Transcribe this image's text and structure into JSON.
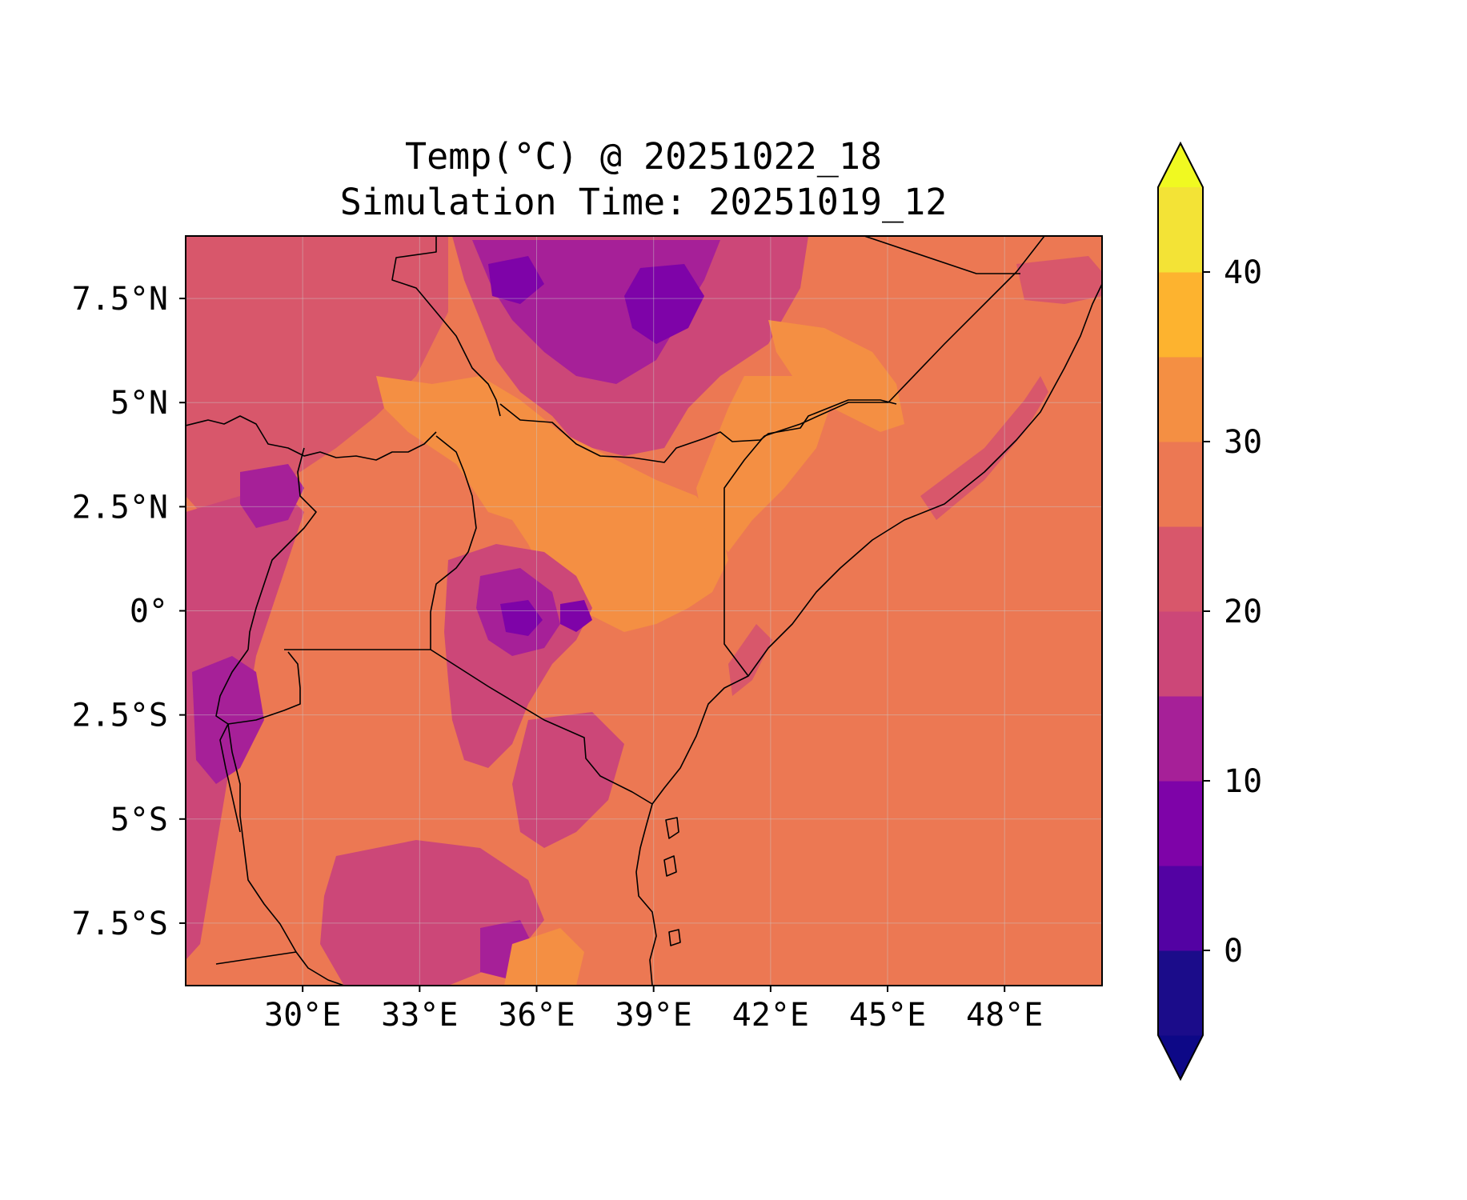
{
  "title": {
    "line1": "Temp(°C) @ 20251022_18",
    "line2": "Simulation Time: 20251019_12"
  },
  "map": {
    "lon_range": [
      27.0,
      50.5
    ],
    "lat_range": [
      -9.0,
      9.0
    ],
    "x_ticks": [
      {
        "value": 30,
        "label": "30°E"
      },
      {
        "value": 33,
        "label": "33°E"
      },
      {
        "value": 36,
        "label": "36°E"
      },
      {
        "value": 39,
        "label": "39°E"
      },
      {
        "value": 42,
        "label": "42°E"
      },
      {
        "value": 45,
        "label": "45°E"
      },
      {
        "value": 48,
        "label": "48°E"
      }
    ],
    "y_ticks": [
      {
        "value": 7.5,
        "label": "7.5°N"
      },
      {
        "value": 5,
        "label": "5°N"
      },
      {
        "value": 2.5,
        "label": "2.5°N"
      },
      {
        "value": 0,
        "label": "0°"
      },
      {
        "value": -2.5,
        "label": "2.5°S"
      },
      {
        "value": -5,
        "label": "5°S"
      },
      {
        "value": -7.5,
        "label": "7.5°S"
      }
    ],
    "gridlines": true
  },
  "colorbar": {
    "levels": [
      -5,
      0,
      5,
      10,
      15,
      20,
      25,
      30,
      35,
      40,
      45
    ],
    "colors": [
      "#1b0c8a",
      "#5302a3",
      "#7e03a8",
      "#a62098",
      "#cc4778",
      "#d8576b",
      "#ec7853",
      "#f48f43",
      "#fdb32f",
      "#f3e336"
    ],
    "extend_low_color": "#0d0887",
    "extend_high_color": "#f0f921",
    "ticks": [
      {
        "value": 0,
        "label": "0"
      },
      {
        "value": 10,
        "label": "10"
      },
      {
        "value": 20,
        "label": "20"
      },
      {
        "value": 30,
        "label": "30"
      },
      {
        "value": 40,
        "label": "40"
      }
    ]
  },
  "field": {
    "background": "#ec7853",
    "regions": [
      {
        "name": "ethiopian-highlands-north",
        "color": "#cc4778"
      },
      {
        "name": "ethiopian-highlands-core",
        "color": "#a62098"
      },
      {
        "name": "ethiopian-highlands-peak",
        "color": "#7e03a8"
      },
      {
        "name": "kenya-highlands",
        "color": "#cc4778"
      },
      {
        "name": "kenya-highlands-core",
        "color": "#a62098"
      },
      {
        "name": "kenya-highlands-peak",
        "color": "#7e03a8"
      },
      {
        "name": "albertine-rift",
        "color": "#cc4778"
      },
      {
        "name": "rwanda-burundi-core",
        "color": "#a62098"
      },
      {
        "name": "kilimanjaro",
        "color": "#7e03a8"
      },
      {
        "name": "southern-highlands",
        "color": "#cc4778"
      },
      {
        "name": "turkana-warm",
        "color": "#f48f43"
      },
      {
        "name": "northeast-kenya-warm",
        "color": "#f48f43"
      },
      {
        "name": "ogaden-warm",
        "color": "#f48f43"
      },
      {
        "name": "south-sudan-lowland",
        "color": "#d8576b"
      },
      {
        "name": "somalia-inland",
        "color": "#d8576b"
      }
    ]
  }
}
